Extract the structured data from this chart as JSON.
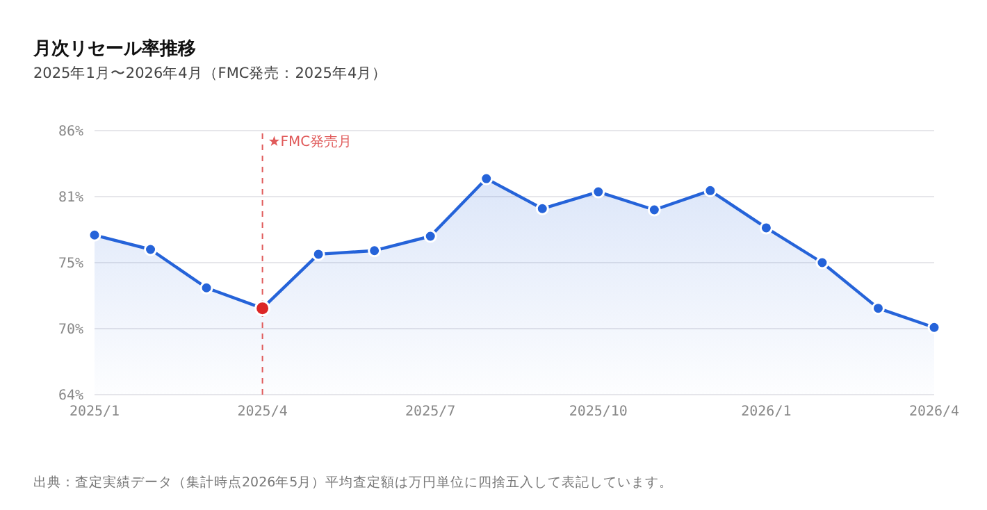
{
  "chart_data": {
    "type": "area",
    "title": "月次リセール率推移",
    "subtitle": "2025年1月〜2026年4月（FMC発売：2025年4月）",
    "categories": [
      "2025/1",
      null,
      null,
      "2025/4",
      null,
      null,
      "2025/7",
      null,
      null,
      "2025/10",
      null,
      null,
      "2026/1",
      null,
      null,
      "2026/4"
    ],
    "series": [
      {
        "color": "#2563d9",
        "colors": [
          "#2563d9",
          "#2563d9",
          "#2563d9",
          "#dc2626",
          "#2563d9",
          "#2563d9",
          "#2563d9",
          "#2563d9",
          "#2563d9",
          "#2563d9",
          "#2563d9",
          "#2563d9",
          "#2563d9",
          "#2563d9",
          "#2563d9",
          "#2563d9"
        ],
        "values": [
          77.3,
          76.1,
          72.9,
          71.2,
          75.7,
          76.0,
          77.2,
          82.0,
          79.5,
          80.9,
          79.4,
          81.0,
          77.9,
          75.0,
          71.2,
          69.6
        ]
      }
    ],
    "ylim": [
      64,
      86
    ],
    "yticks": [
      {
        "value": 64,
        "label": "64%"
      },
      {
        "value": 69.5,
        "label": "70%"
      },
      {
        "value": 75,
        "label": "75%"
      },
      {
        "value": 80.5,
        "label": "81%"
      },
      {
        "value": 86,
        "label": "86%"
      }
    ],
    "ref_lines": [
      {
        "axis": "x",
        "value": "2025/4",
        "label": "★FMC発売月",
        "color": "#e05a5a",
        "line_style": "dashed"
      }
    ],
    "grid": "y",
    "marker": "circle",
    "line_style": "solid",
    "legend": false,
    "annotations": [
      "出典：査定実績データ（集計時点2026年5月）平均査定額は万円単位に四捨五入して表記しています。"
    ]
  }
}
